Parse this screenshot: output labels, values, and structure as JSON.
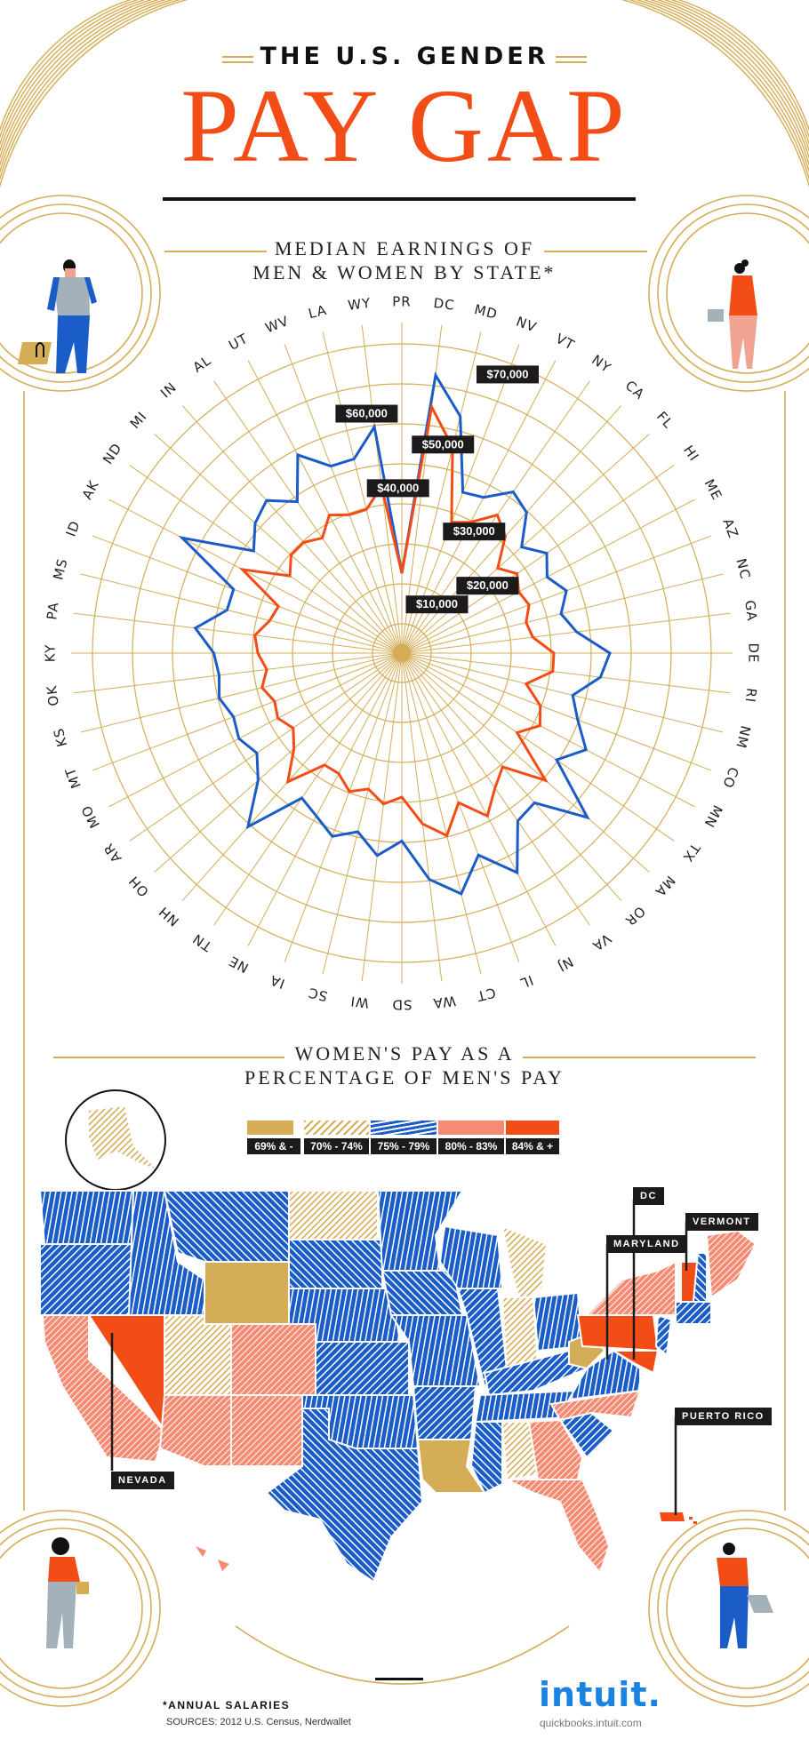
{
  "header": {
    "subtitle": "THE U.S. GENDER",
    "title": "PAY GAP"
  },
  "radar_section": {
    "title_line1": "MEDIAN EARNINGS OF",
    "title_line2": "MEN & WOMEN BY STATE*"
  },
  "map_section": {
    "title_line1": "WOMEN'S PAY AS A",
    "title_line2": "PERCENTAGE OF MEN'S PAY",
    "legend": [
      {
        "label": "69% & -",
        "color": "#d4ad56",
        "pattern": "solid"
      },
      {
        "label": "70% - 74%",
        "color": "#d4ad56",
        "pattern": "hatch"
      },
      {
        "label": "75% - 79%",
        "color": "#1a5cc8",
        "pattern": "wave"
      },
      {
        "label": "80% - 83%",
        "color": "#f68a72",
        "pattern": "hatch"
      },
      {
        "label": "84% & +",
        "color": "#f24d17",
        "pattern": "solid"
      }
    ],
    "callouts": {
      "dc": "DC",
      "maryland": "MARYLAND",
      "vermont": "VERMONT",
      "nevada": "NEVADA",
      "puerto_rico": "PUERTO RICO"
    }
  },
  "footer": {
    "note": "*ANNUAL SALARIES",
    "sources": "SOURCES: 2012 U.S. Census, Nerdwallet",
    "logo": "intuit.",
    "url": "quickbooks.intuit.com"
  },
  "colors": {
    "men": "#1a5cc8",
    "women": "#f24d17",
    "gold": "#d4ad56",
    "light_orange": "#f68a72"
  },
  "chart_data": [
    {
      "type": "radar",
      "title": "MEDIAN EARNINGS OF MEN & WOMEN BY STATE*",
      "subtitle": "*Annual salaries",
      "rings": [
        10000,
        20000,
        30000,
        40000,
        50000,
        60000,
        70000
      ],
      "ring_labels": [
        "$10,000",
        "$20,000",
        "$30,000",
        "$40,000",
        "$50,000",
        "$60,000",
        "$70,000"
      ],
      "categories": [
        "PR",
        "DC",
        "MD",
        "NV",
        "VT",
        "NY",
        "CA",
        "FL",
        "HI",
        "ME",
        "AZ",
        "NC",
        "GA",
        "DE",
        "RI",
        "NM",
        "CO",
        "MN",
        "TX",
        "MA",
        "OR",
        "VA",
        "NJ",
        "IL",
        "CT",
        "WA",
        "SD",
        "WI",
        "SC",
        "IA",
        "NE",
        "TN",
        "NH",
        "OH",
        "AR",
        "MO",
        "MT",
        "KS",
        "OK",
        "KY",
        "PA",
        "MS",
        "ID",
        "AK",
        "ND",
        "MI",
        "IN",
        "AL",
        "UT",
        "WV",
        "LA",
        "WY"
      ],
      "series": [
        {
          "name": "Men",
          "color": "#1a5cc8",
          "values": [
            20000,
            70000,
            61000,
            43000,
            44000,
            49000,
            47000,
            40000,
            44000,
            41000,
            44000,
            41000,
            44000,
            52000,
            50000,
            44000,
            47000,
            52000,
            47000,
            62000,
            50000,
            51000,
            62000,
            54000,
            62000,
            57000,
            47000,
            51000,
            46000,
            49000,
            46000,
            44000,
            58000,
            48000,
            44000,
            46000,
            45000,
            47000,
            46000,
            47000,
            52000,
            45000,
            45000,
            62000,
            45000,
            49000,
            51000,
            46000,
            56000,
            50000,
            50000,
            57000
          ]
        },
        {
          "name": "Women",
          "color": "#f24d17",
          "values": [
            20000,
            62000,
            53000,
            35000,
            37000,
            42000,
            39000,
            32000,
            35000,
            33000,
            34000,
            32000,
            33000,
            38000,
            38000,
            32000,
            37000,
            39000,
            35000,
            48000,
            38000,
            41000,
            46000,
            40000,
            47000,
            43000,
            36000,
            38000,
            35000,
            37000,
            34000,
            34000,
            43000,
            36000,
            33000,
            35000,
            34000,
            36000,
            34000,
            36000,
            37000,
            34000,
            33000,
            45000,
            34000,
            37000,
            37000,
            35000,
            39000,
            37000,
            37000,
            42000
          ]
        }
      ]
    },
    {
      "type": "choropleth",
      "title": "WOMEN'S PAY AS A PERCENTAGE OF MEN'S PAY",
      "bins": [
        "69% & -",
        "70% - 74%",
        "75% - 79%",
        "80% - 83%",
        "84% & +"
      ],
      "highlighted": [
        "DC",
        "MARYLAND",
        "VERMONT",
        "NEVADA",
        "PUERTO RICO"
      ]
    }
  ]
}
